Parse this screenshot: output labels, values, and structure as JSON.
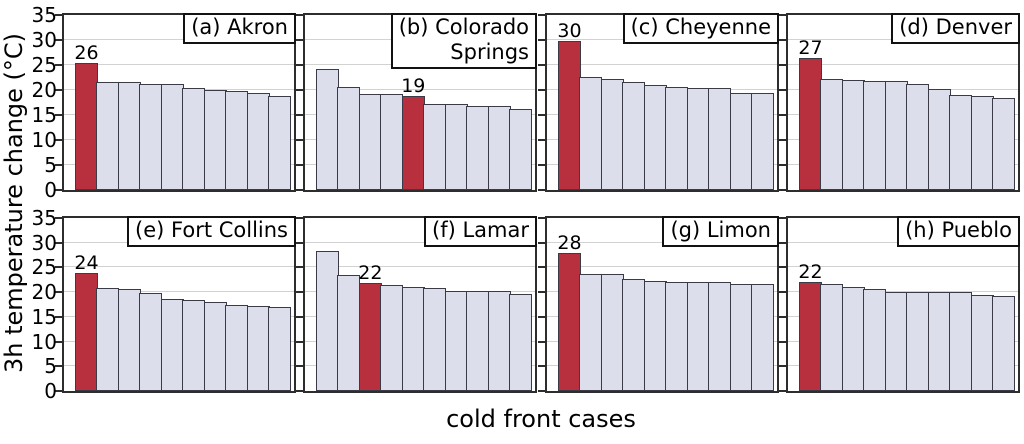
{
  "figure": {
    "ylabel": "3h temperature change (°C)",
    "xlabel": "cold front cases",
    "ylim": [
      0,
      35
    ],
    "yticks": [
      0,
      5,
      10,
      15,
      20,
      25,
      30,
      35
    ],
    "grid": "on",
    "colors": {
      "highlight": "#b82f3d",
      "bar_fill": "#dcdeeb",
      "bar_border": "#3b3b47",
      "grid_line": "#d2d2d2",
      "frame": "#2d2d2d"
    }
  },
  "chart_data": [
    {
      "type": "bar",
      "panel": "a",
      "title": "(a) Akron",
      "title_lines": [
        "(a) Akron"
      ],
      "values": [
        25.5,
        21.7,
        21.7,
        21.2,
        21.2,
        20.5,
        20.0,
        19.9,
        19.4,
        18.9
      ],
      "highlight_index": 0,
      "highlight_label": "26",
      "ylim": [
        0,
        35
      ]
    },
    {
      "type": "bar",
      "panel": "b",
      "title": "(b) Colorado Springs",
      "title_lines": [
        "(b) Colorado",
        "Springs"
      ],
      "values": [
        24.3,
        20.6,
        19.3,
        19.2,
        18.8,
        17.2,
        17.2,
        16.9,
        16.8,
        16.2
      ],
      "highlight_index": 4,
      "highlight_label": "19",
      "ylim": [
        0,
        35
      ]
    },
    {
      "type": "bar",
      "panel": "c",
      "title": "(c) Cheyenne",
      "title_lines": [
        "(c) Cheyenne"
      ],
      "values": [
        29.8,
        22.7,
        22.2,
        21.6,
        21.1,
        20.6,
        20.5,
        20.5,
        19.4,
        19.4
      ],
      "highlight_index": 0,
      "highlight_label": "30",
      "ylim": [
        0,
        35
      ]
    },
    {
      "type": "bar",
      "panel": "d",
      "title": "(d) Denver",
      "title_lines": [
        "(d) Denver"
      ],
      "values": [
        26.5,
        22.2,
        22.1,
        21.8,
        21.8,
        21.3,
        20.3,
        19.0,
        18.9,
        18.4
      ],
      "highlight_index": 0,
      "highlight_label": "27",
      "ylim": [
        0,
        35
      ]
    },
    {
      "type": "bar",
      "panel": "e",
      "title": "(e) Fort Collins",
      "title_lines": [
        "(e) Fort Collins"
      ],
      "values": [
        23.9,
        20.8,
        20.7,
        19.9,
        18.7,
        18.4,
        18.0,
        17.4,
        17.1,
        16.9
      ],
      "highlight_index": 0,
      "highlight_label": "24",
      "ylim": [
        0,
        35
      ]
    },
    {
      "type": "bar",
      "panel": "f",
      "title": "(f) Lamar",
      "title_lines": [
        "(f) Lamar"
      ],
      "values": [
        28.3,
        23.4,
        21.8,
        21.5,
        21.1,
        20.8,
        20.2,
        20.2,
        20.2,
        19.7
      ],
      "highlight_index": 2,
      "highlight_label": "22",
      "ylim": [
        0,
        35
      ]
    },
    {
      "type": "bar",
      "panel": "g",
      "title": "(g) Limon",
      "title_lines": [
        "(g) Limon"
      ],
      "values": [
        27.9,
        23.6,
        23.6,
        22.7,
        22.2,
        22.1,
        22.1,
        22.1,
        21.7,
        21.7
      ],
      "highlight_index": 0,
      "highlight_label": "28",
      "ylim": [
        0,
        35
      ]
    },
    {
      "type": "bar",
      "panel": "h",
      "title": "(h) Pueblo",
      "title_lines": [
        "(h) Pueblo"
      ],
      "values": [
        22.1,
        21.6,
        21.1,
        20.6,
        20.0,
        20.0,
        20.0,
        20.0,
        19.4,
        19.3
      ],
      "highlight_index": 0,
      "highlight_label": "22",
      "ylim": [
        0,
        35
      ]
    }
  ]
}
